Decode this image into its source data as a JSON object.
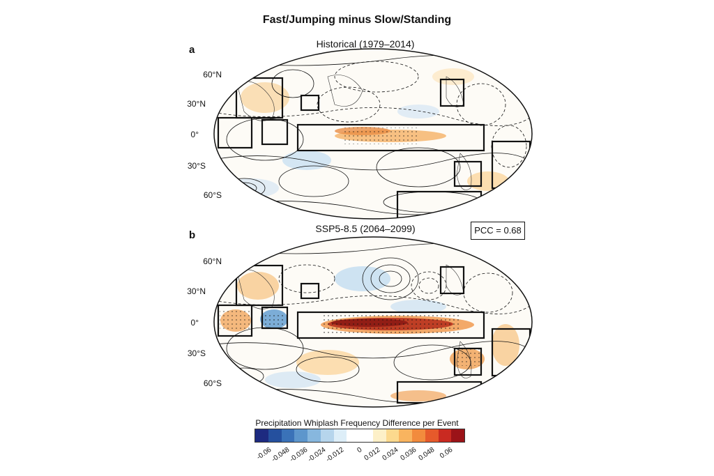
{
  "title": "Fast/Jumping minus Slow/Standing",
  "panels": [
    {
      "letter": "a",
      "title": "Historical (1979–2014)",
      "lat_labels": [
        "60°N",
        "30°N",
        "0°",
        "30°S",
        "60°S"
      ]
    },
    {
      "letter": "b",
      "title": "SSP5-8.5 (2064–2099)",
      "lat_labels": [
        "60°N",
        "30°N",
        "0°",
        "30°S",
        "60°S"
      ],
      "pcc": "PCC = 0.68"
    }
  ],
  "colorbar": {
    "title": "Precipitation Whiplash Frequency Difference per Event",
    "colors": [
      "#1d2a80",
      "#25509e",
      "#3a72b8",
      "#5d96cc",
      "#87b7de",
      "#b6d5ec",
      "#ddeef8",
      "#ffffff",
      "#ffffff",
      "#fdf0c8",
      "#fcd98e",
      "#f9b45f",
      "#f28b3d",
      "#e65a2b",
      "#c92a21",
      "#9b1318"
    ],
    "ticks": [
      "-0.06",
      "-0.048",
      "-0.036",
      "-0.024",
      "-0.012",
      "0",
      "0.012",
      "0.024",
      "0.036",
      "0.048",
      "0.06"
    ]
  },
  "colors": {
    "warm_light": "#fbe3b8",
    "warm_mid": "#f3b070",
    "warm_dark": "#b22a1c",
    "cool_light": "#c9e0f2",
    "cool_mid": "#6ea4d4"
  }
}
